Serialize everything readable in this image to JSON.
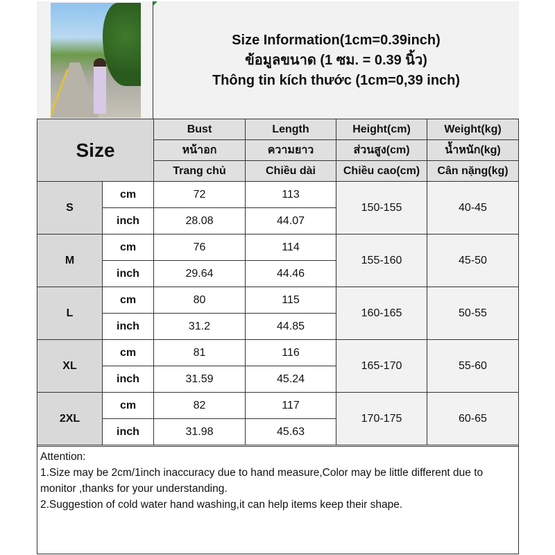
{
  "title_lines": [
    "Size Information(1cm=0.39inch)",
    "ข้อมูลขนาด (1 ซม. = 0.39 นิ้ว)",
    "Thông tin kích thước (1cm=0,39 inch)"
  ],
  "photo": "product-photo",
  "header": {
    "size_label": "Size",
    "columns": [
      [
        "Bust",
        "หน้าอก",
        "Trang chủ"
      ],
      [
        "Length",
        "ความยาว",
        "Chiều dài"
      ],
      [
        "Height(cm)",
        "ส่วนสูง(cm)",
        "Chiều cao(cm)"
      ],
      [
        "Weight(kg)",
        "น้ำหนัก(kg)",
        "Cân nặng(kg)"
      ]
    ]
  },
  "units": [
    "cm",
    "inch"
  ],
  "rows": [
    {
      "size": "S",
      "cm": [
        "72",
        "113"
      ],
      "inch": [
        "28.08",
        "44.07"
      ],
      "height": "150-155",
      "weight": "40-45"
    },
    {
      "size": "M",
      "cm": [
        "76",
        "114"
      ],
      "inch": [
        "29.64",
        "44.46"
      ],
      "height": "155-160",
      "weight": "45-50"
    },
    {
      "size": "L",
      "cm": [
        "80",
        "115"
      ],
      "inch": [
        "31.2",
        "44.85"
      ],
      "height": "160-165",
      "weight": "50-55"
    },
    {
      "size": "XL",
      "cm": [
        "81",
        "116"
      ],
      "inch": [
        "31.59",
        "45.24"
      ],
      "height": "165-170",
      "weight": "55-60"
    },
    {
      "size": "2XL",
      "cm": [
        "82",
        "117"
      ],
      "inch": [
        "31.98",
        "45.63"
      ],
      "height": "170-175",
      "weight": "60-65"
    }
  ],
  "notes": [
    "Attention:",
    "1.Size may be 2cm/1inch inaccuracy due to hand measure,Color may be little different due to monitor ,thanks for your understanding.",
    "2.Suggestion of cold water hand washing,it can help items keep their shape."
  ]
}
